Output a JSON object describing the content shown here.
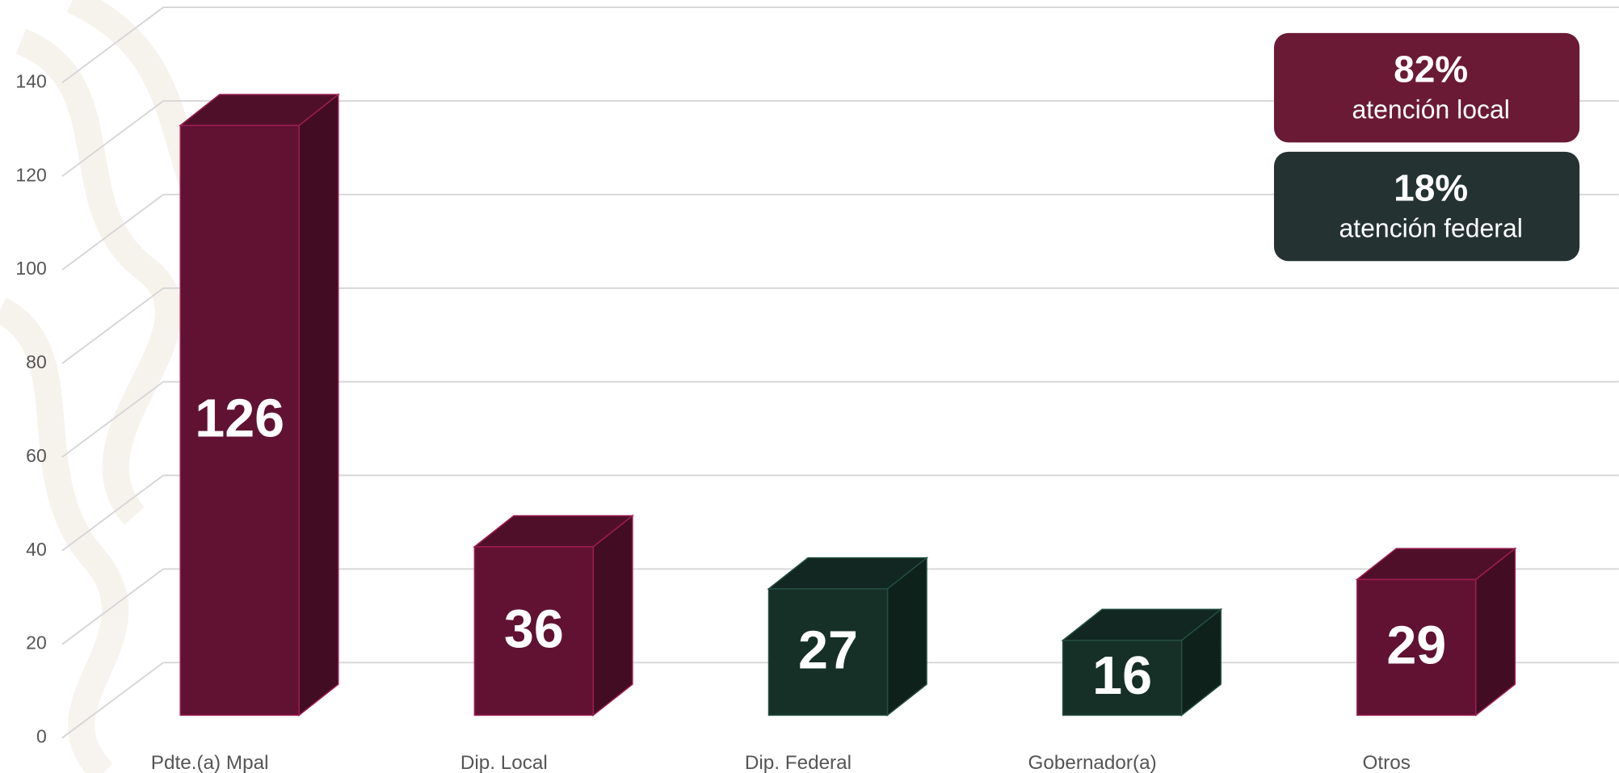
{
  "chart_data": {
    "type": "bar3d",
    "categories": [
      "Pdte.(a) Mpal",
      "Dip. Local",
      "Dip. Federal",
      "Gobernador(a)",
      "Otros"
    ],
    "values": [
      126,
      36,
      27,
      16,
      29
    ],
    "colors": [
      "#611232",
      "#611232",
      "#163028",
      "#163028",
      "#611232"
    ],
    "ylim": [
      0,
      160
    ],
    "yticks": [
      0,
      20,
      40,
      60,
      80,
      100,
      120,
      140
    ],
    "grid": true,
    "annotations": [
      {
        "value": 82,
        "label": "82%",
        "text": "atención local",
        "color": "#6b1a35"
      },
      {
        "value": 18,
        "label": "18%",
        "text": "atención federal",
        "color": "#253232"
      }
    ]
  }
}
